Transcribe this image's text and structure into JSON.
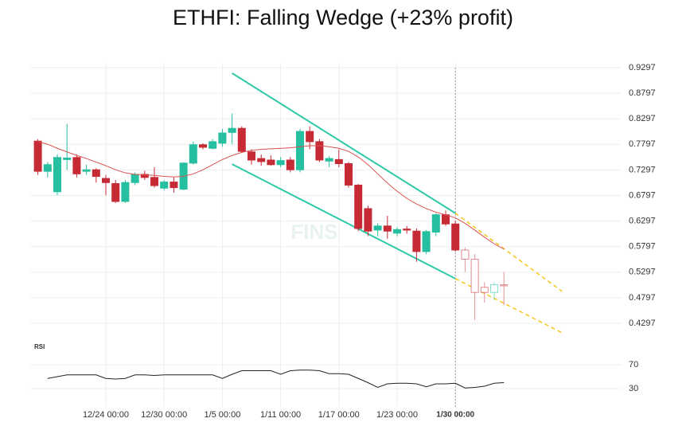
{
  "chart_data": {
    "type": "candlestick",
    "title": "ETHFI: Falling Wedge (+23% profit)",
    "watermark": "FINS",
    "categories": [
      null,
      null,
      null,
      null,
      null,
      null,
      null,
      "12/24 00:00",
      null,
      null,
      null,
      null,
      null,
      "12/30 00:00",
      null,
      null,
      null,
      null,
      null,
      "1/5 00:00",
      null,
      null,
      null,
      null,
      null,
      "1/11 00:00",
      null,
      null,
      null,
      null,
      null,
      "1/17 00:00",
      null,
      null,
      null,
      null,
      null,
      "1/23 00:00",
      null,
      null,
      null,
      null,
      null,
      "1/30 00:00",
      null,
      null,
      null,
      null,
      null
    ],
    "candles": [
      {
        "open": 0.786,
        "high": 0.79,
        "low": 0.72,
        "close": 0.727
      },
      {
        "open": 0.727,
        "high": 0.745,
        "low": 0.715,
        "close": 0.74
      },
      {
        "open": 0.687,
        "high": 0.76,
        "low": 0.68,
        "close": 0.754
      },
      {
        "open": 0.75,
        "high": 0.82,
        "low": 0.73,
        "close": 0.753
      },
      {
        "open": 0.754,
        "high": 0.76,
        "low": 0.715,
        "close": 0.722
      },
      {
        "open": 0.727,
        "high": 0.74,
        "low": 0.72,
        "close": 0.73
      },
      {
        "open": 0.73,
        "high": 0.733,
        "low": 0.705,
        "close": 0.717
      },
      {
        "open": 0.713,
        "high": 0.72,
        "low": 0.68,
        "close": 0.705
      },
      {
        "open": 0.703,
        "high": 0.71,
        "low": 0.665,
        "close": 0.668
      },
      {
        "open": 0.668,
        "high": 0.71,
        "low": 0.665,
        "close": 0.705
      },
      {
        "open": 0.705,
        "high": 0.725,
        "low": 0.7,
        "close": 0.721
      },
      {
        "open": 0.721,
        "high": 0.728,
        "low": 0.71,
        "close": 0.715
      },
      {
        "open": 0.715,
        "high": 0.735,
        "low": 0.695,
        "close": 0.699
      },
      {
        "open": 0.694,
        "high": 0.71,
        "low": 0.69,
        "close": 0.706
      },
      {
        "open": 0.706,
        "high": 0.715,
        "low": 0.685,
        "close": 0.695
      },
      {
        "open": 0.692,
        "high": 0.745,
        "low": 0.69,
        "close": 0.743
      },
      {
        "open": 0.743,
        "high": 0.785,
        "low": 0.74,
        "close": 0.779
      },
      {
        "open": 0.779,
        "high": 0.782,
        "low": 0.77,
        "close": 0.774
      },
      {
        "open": 0.772,
        "high": 0.79,
        "low": 0.77,
        "close": 0.785
      },
      {
        "open": 0.782,
        "high": 0.81,
        "low": 0.775,
        "close": 0.802
      },
      {
        "open": 0.803,
        "high": 0.84,
        "low": 0.78,
        "close": 0.811
      },
      {
        "open": 0.811,
        "high": 0.815,
        "low": 0.763,
        "close": 0.766
      },
      {
        "open": 0.765,
        "high": 0.77,
        "low": 0.74,
        "close": 0.749
      },
      {
        "open": 0.752,
        "high": 0.76,
        "low": 0.738,
        "close": 0.746
      },
      {
        "open": 0.749,
        "high": 0.758,
        "low": 0.738,
        "close": 0.74
      },
      {
        "open": 0.74,
        "high": 0.755,
        "low": 0.735,
        "close": 0.748
      },
      {
        "open": 0.749,
        "high": 0.755,
        "low": 0.725,
        "close": 0.73
      },
      {
        "open": 0.73,
        "high": 0.81,
        "low": 0.725,
        "close": 0.805
      },
      {
        "open": 0.805,
        "high": 0.815,
        "low": 0.77,
        "close": 0.785
      },
      {
        "open": 0.785,
        "high": 0.79,
        "low": 0.745,
        "close": 0.749
      },
      {
        "open": 0.747,
        "high": 0.757,
        "low": 0.735,
        "close": 0.752
      },
      {
        "open": 0.75,
        "high": 0.77,
        "low": 0.735,
        "close": 0.742
      },
      {
        "open": 0.742,
        "high": 0.745,
        "low": 0.695,
        "close": 0.7
      },
      {
        "open": 0.7,
        "high": 0.702,
        "low": 0.61,
        "close": 0.615
      },
      {
        "open": 0.654,
        "high": 0.66,
        "low": 0.6,
        "close": 0.61
      },
      {
        "open": 0.612,
        "high": 0.625,
        "low": 0.6,
        "close": 0.62
      },
      {
        "open": 0.62,
        "high": 0.64,
        "low": 0.595,
        "close": 0.61
      },
      {
        "open": 0.606,
        "high": 0.618,
        "low": 0.6,
        "close": 0.613
      },
      {
        "open": 0.614,
        "high": 0.62,
        "low": 0.605,
        "close": 0.612
      },
      {
        "open": 0.61,
        "high": 0.615,
        "low": 0.55,
        "close": 0.57
      },
      {
        "open": 0.57,
        "high": 0.612,
        "low": 0.565,
        "close": 0.609
      },
      {
        "open": 0.608,
        "high": 0.645,
        "low": 0.6,
        "close": 0.642
      },
      {
        "open": 0.642,
        "high": 0.65,
        "low": 0.62,
        "close": 0.624
      },
      {
        "open": 0.624,
        "high": 0.63,
        "low": 0.57,
        "close": 0.573
      },
      {
        "open": 0.573,
        "high": 0.578,
        "low": 0.53,
        "close": 0.555
      },
      {
        "open": 0.555,
        "high": 0.565,
        "low": 0.436,
        "close": 0.49
      },
      {
        "open": 0.5,
        "high": 0.51,
        "low": 0.47,
        "close": 0.49
      },
      {
        "open": 0.49,
        "high": 0.51,
        "low": 0.475,
        "close": 0.505
      },
      {
        "open": 0.505,
        "high": 0.53,
        "low": 0.465,
        "close": 0.503
      }
    ],
    "hollow_start": 44,
    "up_color": "#26bfa0",
    "down_color": "#c62a35",
    "moving_average": {
      "color": "#d9534f",
      "values": [
        0.785,
        0.78,
        0.772,
        0.765,
        0.758,
        0.752,
        0.745,
        0.738,
        0.73,
        0.724,
        0.721,
        0.72,
        0.719,
        0.717,
        0.716,
        0.717,
        0.722,
        0.73,
        0.74,
        0.75,
        0.758,
        0.764,
        0.768,
        0.77,
        0.771,
        0.772,
        0.773,
        0.775,
        0.777,
        0.777,
        0.775,
        0.772,
        0.766,
        0.755,
        0.74,
        0.722,
        0.704,
        0.688,
        0.674,
        0.663,
        0.654,
        0.647,
        0.642,
        0.636,
        0.625,
        0.612,
        0.598,
        0.585,
        0.575
      ]
    },
    "trendlines": [
      {
        "color": "#2ec9a7",
        "dashed": false,
        "x": [
          20,
          43
        ],
        "y": [
          0.919,
          0.645
        ]
      },
      {
        "color": "#2ec9a7",
        "dashed": false,
        "x": [
          20,
          43
        ],
        "y": [
          0.741,
          0.517
        ]
      },
      {
        "color": "#f5c518",
        "dashed": true,
        "x": [
          43,
          54
        ],
        "y": [
          0.645,
          0.492
        ]
      },
      {
        "color": "#f5c518",
        "dashed": true,
        "x": [
          43,
          54
        ],
        "y": [
          0.517,
          0.411
        ]
      }
    ],
    "marker_index": 43,
    "ylim": [
      0.4,
      0.94
    ],
    "yticks": [
      0.9297,
      0.8797,
      0.8297,
      0.7797,
      0.7297,
      0.6797,
      0.6297,
      0.5797,
      0.5297,
      0.4797,
      0.4297
    ],
    "rsi": {
      "label": "RSI",
      "color": "#222",
      "ylim": [
        10,
        90
      ],
      "yticks": [
        70,
        30
      ],
      "values": [
        null,
        47,
        50,
        53,
        53,
        53,
        53,
        47,
        46,
        47,
        53,
        53,
        52,
        53,
        53,
        53,
        53,
        53,
        53,
        47,
        54,
        60,
        60,
        60,
        60,
        54,
        60,
        61,
        61,
        60,
        55,
        55,
        54,
        47,
        40,
        32,
        38,
        39,
        39,
        38,
        33,
        38,
        38,
        39,
        31,
        32,
        34,
        39,
        40
      ]
    },
    "grid": true
  }
}
